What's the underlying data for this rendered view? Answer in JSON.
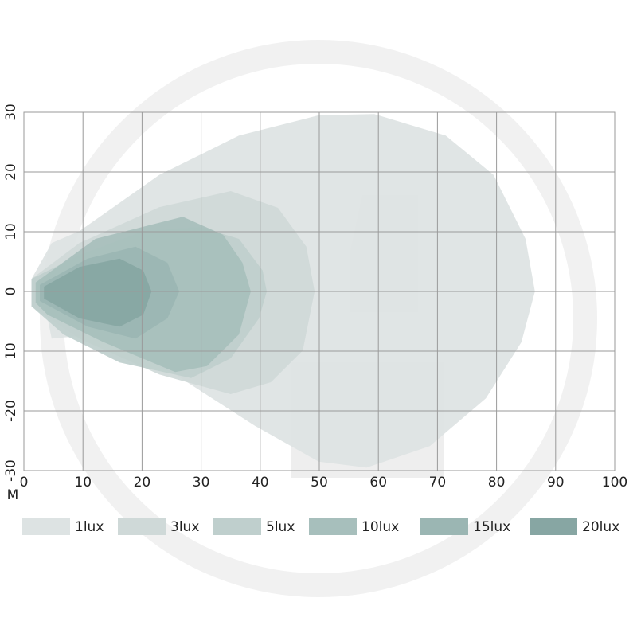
{
  "chart_data": {
    "type": "area",
    "x_label": "M",
    "xlim": [
      0,
      100
    ],
    "xticks": [
      0,
      10,
      20,
      30,
      40,
      50,
      60,
      70,
      80,
      90,
      100
    ],
    "ylim": [
      -30,
      30
    ],
    "yticks": [
      30,
      20,
      10,
      0,
      {
        "value": -10,
        "label": "10"
      },
      -20,
      -30
    ],
    "grid": true,
    "series": [
      {
        "name": "1lux",
        "color": "#dde3e3",
        "x": [
          1.3,
          4.7,
          9.4,
          22.9,
          36.4,
          49.9,
          59.3,
          71.4,
          79.5,
          84.9,
          86.5,
          84.2,
          78.2,
          68.7,
          58,
          49.9,
          39.1,
          25.6,
          12.1,
          4.7,
          4,
          1.3
        ],
        "y": [
          2.1,
          8.1,
          10.1,
          19.5,
          26.1,
          29.5,
          29.7,
          26.1,
          19.5,
          8.8,
          0,
          -8.5,
          -17.9,
          -25.9,
          -29.5,
          -28.5,
          -22.5,
          -13.9,
          -7.2,
          -7.9,
          -4.5,
          -2.5
        ]
      },
      {
        "name": "3lux",
        "color": "#cfd9d8",
        "x": [
          1.3,
          9.4,
          22.9,
          35,
          43,
          47.8,
          49.2,
          47.2,
          41.8,
          35,
          22.9,
          9.4,
          1.3
        ],
        "y": [
          2.1,
          8.1,
          14.1,
          16.8,
          14,
          7.5,
          0,
          -9.9,
          -15.2,
          -17.2,
          -13.9,
          -7.9,
          -2.5
        ]
      },
      {
        "name": "5lux",
        "color": "#bfcfcd",
        "x": [
          1.3,
          9.4,
          20.2,
          29.7,
          36.4,
          40.4,
          41.1,
          39.8,
          35,
          28.3,
          16.2,
          6.7,
          1.3
        ],
        "y": [
          2.1,
          6.1,
          10.1,
          10.8,
          8.8,
          3.5,
          0,
          -4.5,
          -11.2,
          -14.5,
          -11.9,
          -7.2,
          -2.5
        ]
      },
      {
        "name": "10lux",
        "color": "#a7bfbc",
        "x": [
          2,
          12.1,
          26.9,
          33.7,
          37,
          38.4,
          36.4,
          31,
          25.6,
          13.5,
          4,
          2
        ],
        "y": [
          1.5,
          8.8,
          12.5,
          9.5,
          4.8,
          0,
          -7.2,
          -12.5,
          -13.5,
          -8.5,
          -3.9,
          -1.9
        ]
      },
      {
        "name": "15lux",
        "color": "#9bb6b3",
        "x": [
          2.7,
          10.8,
          18.9,
          24.3,
          26.3,
          24.3,
          18.9,
          10.8,
          2.7
        ],
        "y": [
          1.1,
          5.5,
          7.5,
          4.8,
          0,
          -4.5,
          -7.9,
          -5.9,
          -1.6
        ]
      },
      {
        "name": "20lux",
        "color": "#87a6a3",
        "x": [
          3.4,
          9.4,
          16.2,
          20.2,
          21.6,
          20.2,
          16.2,
          9.4,
          3.4
        ],
        "y": [
          0.8,
          4.1,
          5.5,
          3.5,
          0,
          -3.9,
          -5.9,
          -4.5,
          -1.2
        ]
      }
    ]
  }
}
